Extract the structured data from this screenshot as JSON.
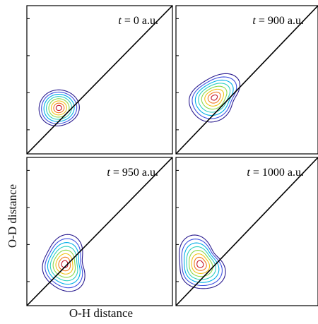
{
  "chart_data": {
    "type": "contour",
    "xlabel": "O-H distance",
    "ylabel": "O-D distance",
    "x_ticks": 4,
    "y_ticks": 4,
    "diagonal": "y = x",
    "contour_colors": [
      "#2a1b8f",
      "#3f51e0",
      "#00aee8",
      "#2fd0c0",
      "#8bd84a",
      "#f0c419",
      "#f07a1f",
      "#c4152a"
    ],
    "panels": [
      {
        "time_var": "t",
        "time_value": "= 0 a.u.",
        "x": 0.22,
        "y": 0.31,
        "shape": "compact"
      },
      {
        "time_var": "t",
        "time_value": "= 900 a.u.",
        "x": 0.27,
        "y": 0.38,
        "shape": "elongated"
      },
      {
        "time_var": "t",
        "time_value": "= 950 a.u.",
        "x": 0.26,
        "y": 0.28,
        "shape": "irregular"
      },
      {
        "time_var": "t",
        "time_value": "= 1000 a.u.",
        "x": 0.17,
        "y": 0.28,
        "shape": "irregular"
      }
    ]
  }
}
